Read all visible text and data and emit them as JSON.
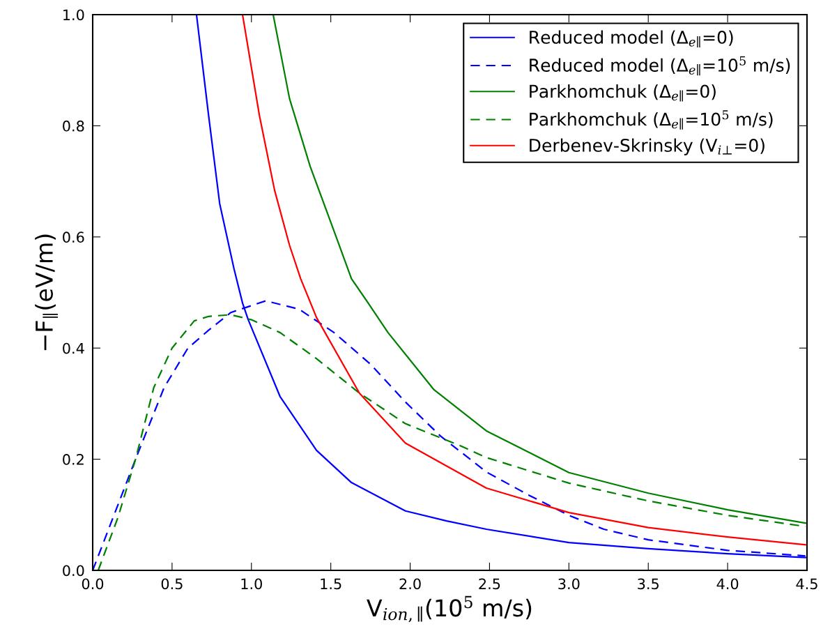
{
  "chart_data": {
    "type": "line",
    "xlabel": "V$_{ion,∥}$(10$^{5}$ m/s)",
    "ylabel": "−F$_{∥}$(eV/m)",
    "xlim": [
      0.0,
      4.5
    ],
    "ylim": [
      0.0,
      1.0
    ],
    "xticks": [
      {
        "value": 0,
        "label": "0.0"
      },
      0.5,
      {
        "value": 1,
        "label": "1.0"
      },
      1.5,
      {
        "value": 2,
        "label": "2.0"
      },
      2.5,
      {
        "value": 3,
        "label": "3.0"
      },
      3.5,
      {
        "value": 4,
        "label": "4.0"
      },
      4.5
    ],
    "yticks": [
      {
        "value": 0,
        "label": "0.0"
      },
      0.2,
      0.4,
      0.6,
      0.8,
      {
        "value": 1,
        "label": "1.0"
      }
    ],
    "grid": false,
    "legend": "top right",
    "series": [
      {
        "name": "Reduced model (Δ$_{e∥}$=0)",
        "color": "#0000ff",
        "line_style": "solid",
        "x": [
          0.654,
          0.73,
          0.8,
          0.89,
          0.944,
          0.98,
          1.18,
          1.41,
          1.63,
          1.97,
          2.23,
          2.48,
          3.0,
          3.5,
          4.0,
          4.49
        ],
        "values": [
          1.0,
          0.819,
          0.66,
          0.543,
          0.481,
          0.451,
          0.313,
          0.216,
          0.158,
          0.107,
          0.089,
          0.074,
          0.05,
          0.039,
          0.03,
          0.023
        ]
      },
      {
        "name": "Reduced model (Δ$_{e∥}$=10$^{5}$ m/s)",
        "color": "#0000ff",
        "line_style": "dashed",
        "x": [
          0.0,
          0.27,
          0.45,
          0.6,
          0.73,
          0.87,
          1.09,
          1.3,
          1.52,
          1.75,
          1.97,
          2.19,
          2.48,
          2.75,
          3.0,
          3.22,
          3.5,
          4.0,
          4.49
        ],
        "values": [
          0.0,
          0.2,
          0.329,
          0.4,
          0.432,
          0.464,
          0.485,
          0.47,
          0.428,
          0.371,
          0.303,
          0.242,
          0.177,
          0.135,
          0.099,
          0.074,
          0.055,
          0.036,
          0.026
        ]
      },
      {
        "name": "Parkhomchuk (Δ$_{e∥}$=0)",
        "color": "#008000",
        "line_style": "solid",
        "x": [
          1.137,
          1.24,
          1.37,
          1.52,
          1.63,
          1.74,
          1.86,
          2.15,
          2.48,
          3.0,
          3.5,
          4.0,
          4.49
        ],
        "values": [
          1.0,
          0.849,
          0.727,
          0.611,
          0.525,
          0.479,
          0.428,
          0.325,
          0.251,
          0.176,
          0.139,
          0.109,
          0.085
        ]
      },
      {
        "name": "Parkhomchuk (Δ$_{e∥}$=10$^{5}$ m/s)",
        "color": "#008000",
        "line_style": "dashed",
        "x": [
          0.035,
          0.16,
          0.27,
          0.385,
          0.5,
          0.64,
          0.73,
          0.87,
          1.0,
          1.18,
          1.41,
          1.68,
          1.97,
          2.31,
          2.48,
          3.0,
          3.5,
          4.0,
          4.49
        ],
        "values": [
          0.0,
          0.096,
          0.2,
          0.329,
          0.4,
          0.449,
          0.457,
          0.46,
          0.451,
          0.428,
          0.381,
          0.319,
          0.264,
          0.225,
          0.203,
          0.157,
          0.125,
          0.099,
          0.079
        ]
      },
      {
        "name": "Derbenev-Skrinsky (V$_{i⊥}$=0)",
        "color": "#ff0000",
        "line_style": "solid",
        "x": [
          0.944,
          1.05,
          1.146,
          1.24,
          1.31,
          1.41,
          1.68,
          1.97,
          2.48,
          3.0,
          3.5,
          4.0,
          4.49
        ],
        "values": [
          1.0,
          0.819,
          0.684,
          0.585,
          0.525,
          0.455,
          0.319,
          0.229,
          0.148,
          0.104,
          0.077,
          0.06,
          0.046
        ]
      }
    ]
  }
}
